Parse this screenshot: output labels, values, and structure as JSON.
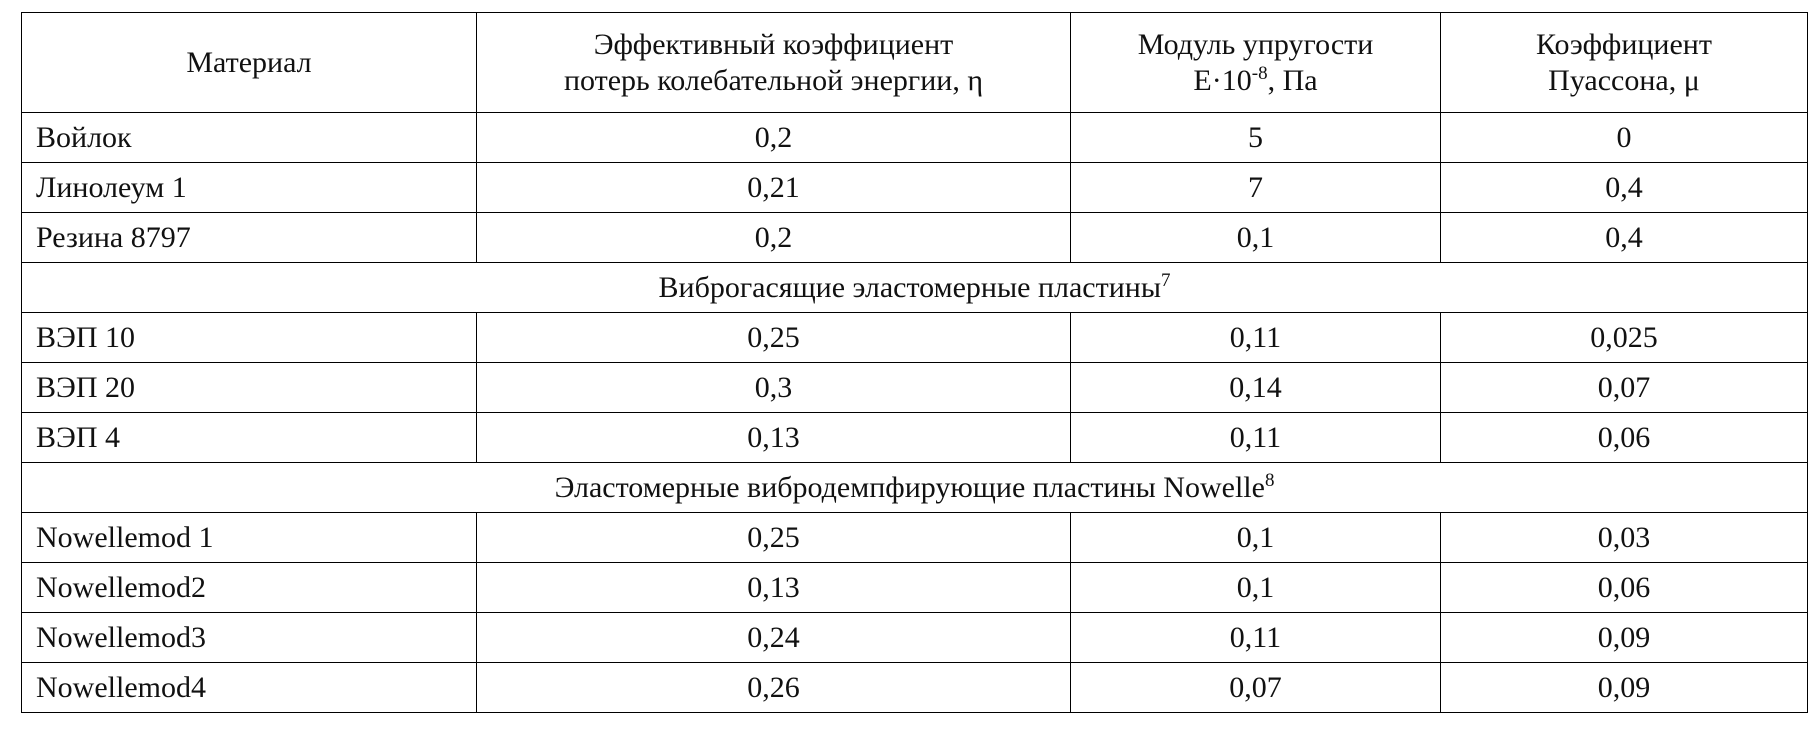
{
  "table": {
    "header": [
      {
        "lines": [
          "Материал"
        ]
      },
      {
        "lines": [
          "Эффективный коэффициент",
          "потерь колебательной энергии, η"
        ]
      },
      {
        "lines": [
          "Модуль упругости"
        ],
        "base": "E·10",
        "sup": "-8",
        "tail": ", Па"
      },
      {
        "lines": [
          "Коэффициент",
          "Пуассона, μ"
        ]
      }
    ],
    "rows": [
      [
        "Войлок",
        "0,2",
        "5",
        "0"
      ],
      [
        "Линолеум 1",
        "0,21",
        "7",
        "0,4"
      ],
      [
        "Резина 8797",
        "0,2",
        "0,1",
        "0,4"
      ],
      {
        "section": "Виброгасящие эластомерные пластины",
        "note": "7"
      },
      [
        "ВЭП 10",
        "0,25",
        "0,11",
        "0,025"
      ],
      [
        "ВЭП 20",
        "0,3",
        "0,14",
        "0,07"
      ],
      [
        "ВЭП 4",
        "0,13",
        "0,11",
        "0,06"
      ],
      {
        "section": "Эластомерные вибродемпфирующие пластины Nowelle",
        "note": "8"
      },
      [
        "Nowellemod 1",
        "0,25",
        "0,1",
        "0,03"
      ],
      [
        "Nowellemod2",
        "0,13",
        "0,1",
        "0,06"
      ],
      [
        "Nowellemod3",
        "0,24",
        "0,11",
        "0,09"
      ],
      [
        "Nowellemod4",
        "0,26",
        "0,07",
        "0,09"
      ]
    ]
  }
}
